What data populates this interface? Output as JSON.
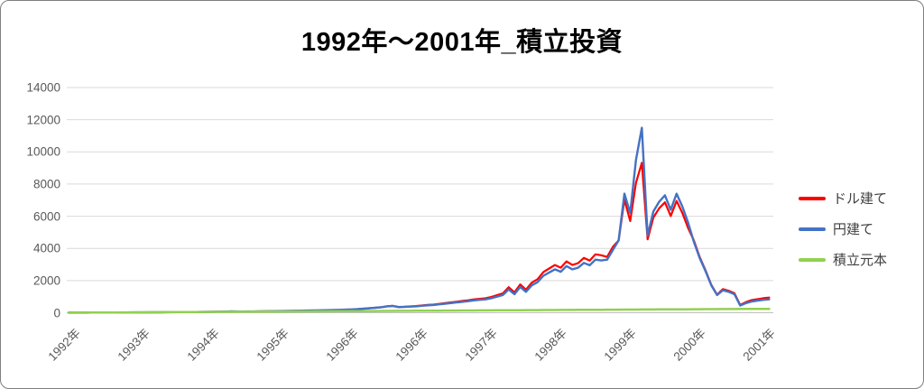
{
  "window": {
    "background": "#FFFFFF",
    "border_color": "#7F7F7F"
  },
  "chart": {
    "title": "1992年〜2001年_積立投資",
    "legend": [
      {
        "name": "ドル建て",
        "color": "#FF0000"
      },
      {
        "name": "円建て",
        "color": "#4472C4"
      },
      {
        "name": "積立元本",
        "color": "#92D050"
      }
    ]
  },
  "chart_data": {
    "type": "line",
    "title": "1992年〜2001年_積立投資",
    "xlabel": "",
    "ylabel": "",
    "ylim": [
      0,
      14000
    ],
    "y_ticks": [
      0,
      2000,
      4000,
      6000,
      8000,
      10000,
      12000,
      14000
    ],
    "grid": true,
    "gridline_color": "#D9D9D9",
    "axis_line_color": "#BFBFBF",
    "axis_label_color": "#595959",
    "legend_position": "right",
    "x_unit": "month_index_from_1992",
    "x_tick_positions": [
      0,
      12,
      24,
      36,
      48,
      60,
      72,
      84,
      96,
      108,
      120
    ],
    "x_tick_labels": [
      "1992年",
      "1993年",
      "1994年",
      "1995年",
      "1996年",
      "1996年",
      "1997年",
      "1998年",
      "1999年",
      "2000年",
      "2001年"
    ],
    "series": [
      {
        "name": "ドル建て",
        "color": "#FF0000",
        "stroke_width": 2.2,
        "values": [
          5,
          6,
          7,
          8,
          9,
          10,
          11,
          12,
          13,
          15,
          17,
          19,
          21,
          23,
          25,
          27,
          29,
          32,
          35,
          37,
          39,
          42,
          45,
          48,
          53,
          58,
          66,
          73,
          80,
          76,
          70,
          74,
          78,
          82,
          87,
          92,
          97,
          102,
          107,
          114,
          121,
          129,
          136,
          143,
          150,
          158,
          167,
          177,
          190,
          205,
          225,
          250,
          278,
          310,
          342,
          405,
          428,
          358,
          372,
          395,
          418,
          450,
          483,
          506,
          550,
          595,
          640,
          685,
          730,
          775,
          830,
          865,
          900,
          975,
          1090,
          1200,
          1590,
          1260,
          1760,
          1430,
          1870,
          2090,
          2530,
          2750,
          2970,
          2800,
          3190,
          2970,
          3080,
          3410,
          3240,
          3630,
          3575,
          3465,
          4095,
          4500,
          7030,
          5700,
          8075,
          9320,
          4560,
          5920,
          6490,
          6860,
          6015,
          6955,
          6200,
          5265,
          4490,
          3470,
          2650,
          1735,
          1120,
          1470,
          1365,
          1210,
          480,
          660,
          790,
          850,
          905,
          940
        ]
      },
      {
        "name": "円建て",
        "color": "#4472C4",
        "stroke_width": 2.4,
        "values": [
          5,
          6,
          7,
          8,
          9,
          10,
          11,
          12,
          14,
          16,
          18,
          20,
          22,
          24,
          26,
          28,
          30,
          33,
          36,
          38,
          40,
          43,
          46,
          50,
          55,
          60,
          68,
          75,
          82,
          78,
          72,
          76,
          80,
          85,
          90,
          95,
          100,
          105,
          110,
          118,
          125,
          133,
          140,
          148,
          155,
          163,
          172,
          182,
          195,
          210,
          230,
          255,
          280,
          310,
          340,
          400,
          420,
          350,
          360,
          380,
          400,
          430,
          460,
          480,
          520,
          560,
          600,
          640,
          680,
          720,
          770,
          800,
          830,
          900,
          1000,
          1100,
          1450,
          1150,
          1600,
          1300,
          1700,
          1900,
          2300,
          2500,
          2700,
          2550,
          2900,
          2700,
          2800,
          3100,
          2950,
          3300,
          3250,
          3300,
          3900,
          4500,
          7400,
          6200,
          9500,
          11500,
          4800,
          6300,
          6900,
          7300,
          6400,
          7400,
          6600,
          5600,
          4400,
          3400,
          2600,
          1700,
          1100,
          1400,
          1300,
          1150,
          450,
          600,
          700,
          750,
          800,
          830
        ]
      },
      {
        "name": "積立元本",
        "color": "#92D050",
        "stroke_width": 2.5,
        "values": [
          2,
          4,
          6,
          8,
          10,
          12,
          14,
          16,
          18,
          20,
          22,
          24,
          26,
          28,
          30,
          32,
          34,
          36,
          38,
          40,
          42,
          44,
          46,
          48,
          50,
          52,
          54,
          56,
          58,
          60,
          62,
          64,
          66,
          68,
          70,
          72,
          74,
          76,
          78,
          80,
          82,
          84,
          86,
          88,
          90,
          92,
          94,
          96,
          98,
          100,
          102,
          104,
          106,
          108,
          110,
          112,
          114,
          116,
          118,
          120,
          122,
          124,
          126,
          128,
          130,
          132,
          134,
          136,
          138,
          140,
          142,
          144,
          146,
          148,
          150,
          152,
          154,
          156,
          158,
          160,
          162,
          164,
          166,
          168,
          170,
          172,
          174,
          176,
          178,
          180,
          182,
          184,
          186,
          188,
          190,
          192,
          194,
          196,
          198,
          200,
          202,
          204,
          206,
          208,
          210,
          212,
          214,
          216,
          218,
          220,
          222,
          224,
          226,
          228,
          230,
          232,
          234,
          236,
          238,
          240,
          242,
          244
        ]
      }
    ]
  }
}
